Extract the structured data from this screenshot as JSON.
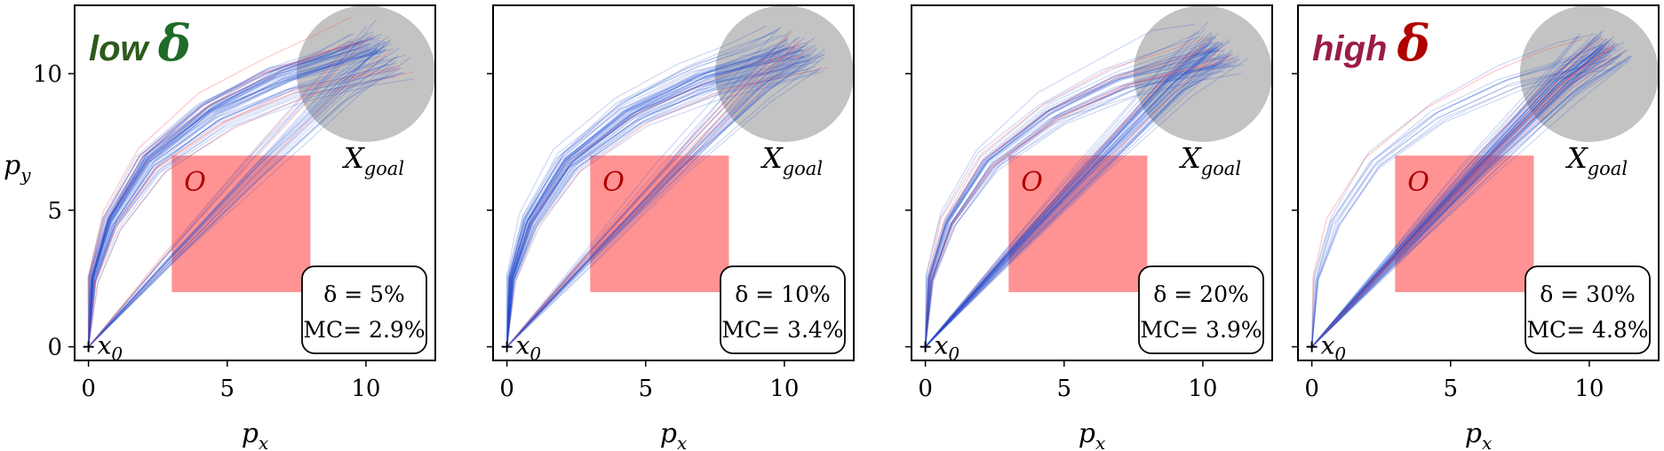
{
  "chart_data": [
    {
      "type": "line",
      "corner_label": "low",
      "corner_symbol": "δ",
      "corner_color": "#2d5a1b",
      "corner_symbol_color": "#1f6b2a",
      "delta_label": "δ = 5%",
      "mc_label": "MC= 2.9%",
      "lower_band_weight": 0.25
    },
    {
      "type": "line",
      "corner_label": "",
      "corner_symbol": "",
      "delta_label": "δ = 10%",
      "mc_label": "MC= 3.4%",
      "lower_band_weight": 0.35
    },
    {
      "type": "line",
      "corner_label": "",
      "corner_symbol": "",
      "delta_label": "δ = 20%",
      "mc_label": "MC= 3.9%",
      "lower_band_weight": 0.6
    },
    {
      "type": "line",
      "corner_label": "high",
      "corner_symbol": "δ",
      "corner_color": "#9b1b4a",
      "corner_symbol_color": "#b00000",
      "delta_label": "δ = 30%",
      "mc_label": "MC= 4.8%",
      "lower_band_weight": 0.95
    }
  ],
  "axes": {
    "xlabel": "p_x",
    "ylabel": "p_y",
    "xlim": [
      -0.5,
      12.5
    ],
    "ylim": [
      -0.5,
      12.5
    ],
    "x_ticks": [
      0,
      5,
      10
    ],
    "y_ticks": [
      0,
      5,
      10
    ]
  },
  "obstacle": {
    "label": "O",
    "x": [
      3,
      8
    ],
    "y": [
      2,
      7
    ],
    "color": "#ff8080"
  },
  "goal": {
    "label": "X",
    "subscript": "goal",
    "center": [
      10,
      10
    ],
    "radius": 2.5,
    "color": "#bdbdbd"
  },
  "start": {
    "label": "x",
    "subscript": "0",
    "point": [
      0,
      0
    ]
  },
  "colors": {
    "trajectory": "#1f4fd0",
    "violating": "#ff6060"
  }
}
